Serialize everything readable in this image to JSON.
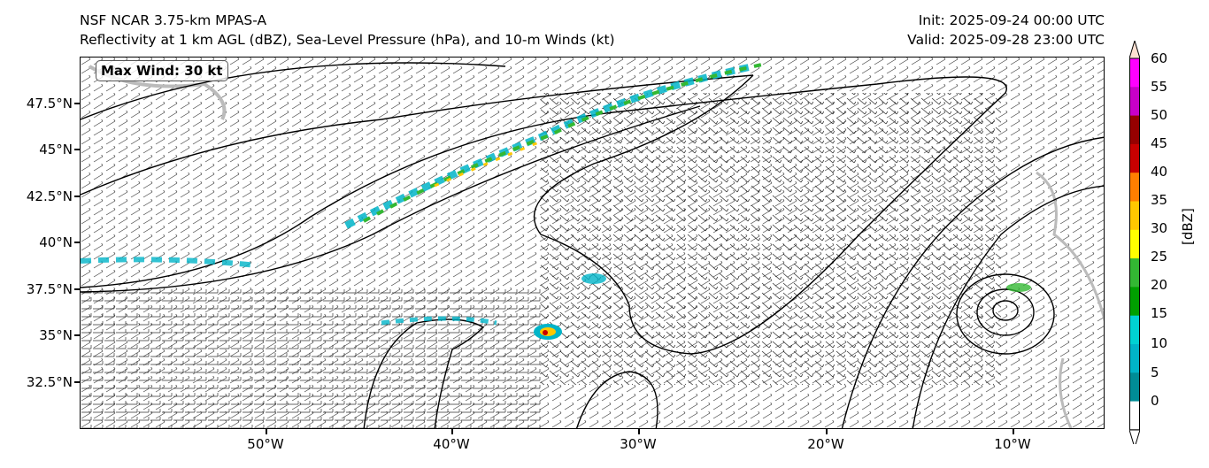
{
  "header": {
    "model": "NSF NCAR 3.75-km MPAS-A",
    "fields": "Reflectivity at 1 km AGL (dBZ), Sea-Level Pressure (hPa), and 10-m Winds (kt)",
    "init": "Init: 2025-09-24 00:00 UTC",
    "valid": "Valid: 2025-09-28 23:00 UTC"
  },
  "map": {
    "max_wind": "Max Wind: 30 kt",
    "lat_labels": [
      "47.5°N",
      "45°N",
      "42.5°N",
      "40°N",
      "37.5°N",
      "35°N",
      "32.5°N"
    ],
    "lon_labels": [
      "50°W",
      "40°W",
      "30°W",
      "20°W",
      "10°W"
    ]
  },
  "colorbar": {
    "unit": "[dBZ]",
    "ticks": [
      "60",
      "55",
      "50",
      "45",
      "40",
      "35",
      "30",
      "25",
      "20",
      "15",
      "10",
      "5",
      "0"
    ],
    "colors": [
      "#fde0d2",
      "#ff00ff",
      "#c800c8",
      "#960000",
      "#c80000",
      "#ff7f00",
      "#ffc800",
      "#ffff00",
      "#33b833",
      "#00a000",
      "#00d2d2",
      "#00b4c8",
      "#008c96",
      "#ffffff"
    ]
  }
}
